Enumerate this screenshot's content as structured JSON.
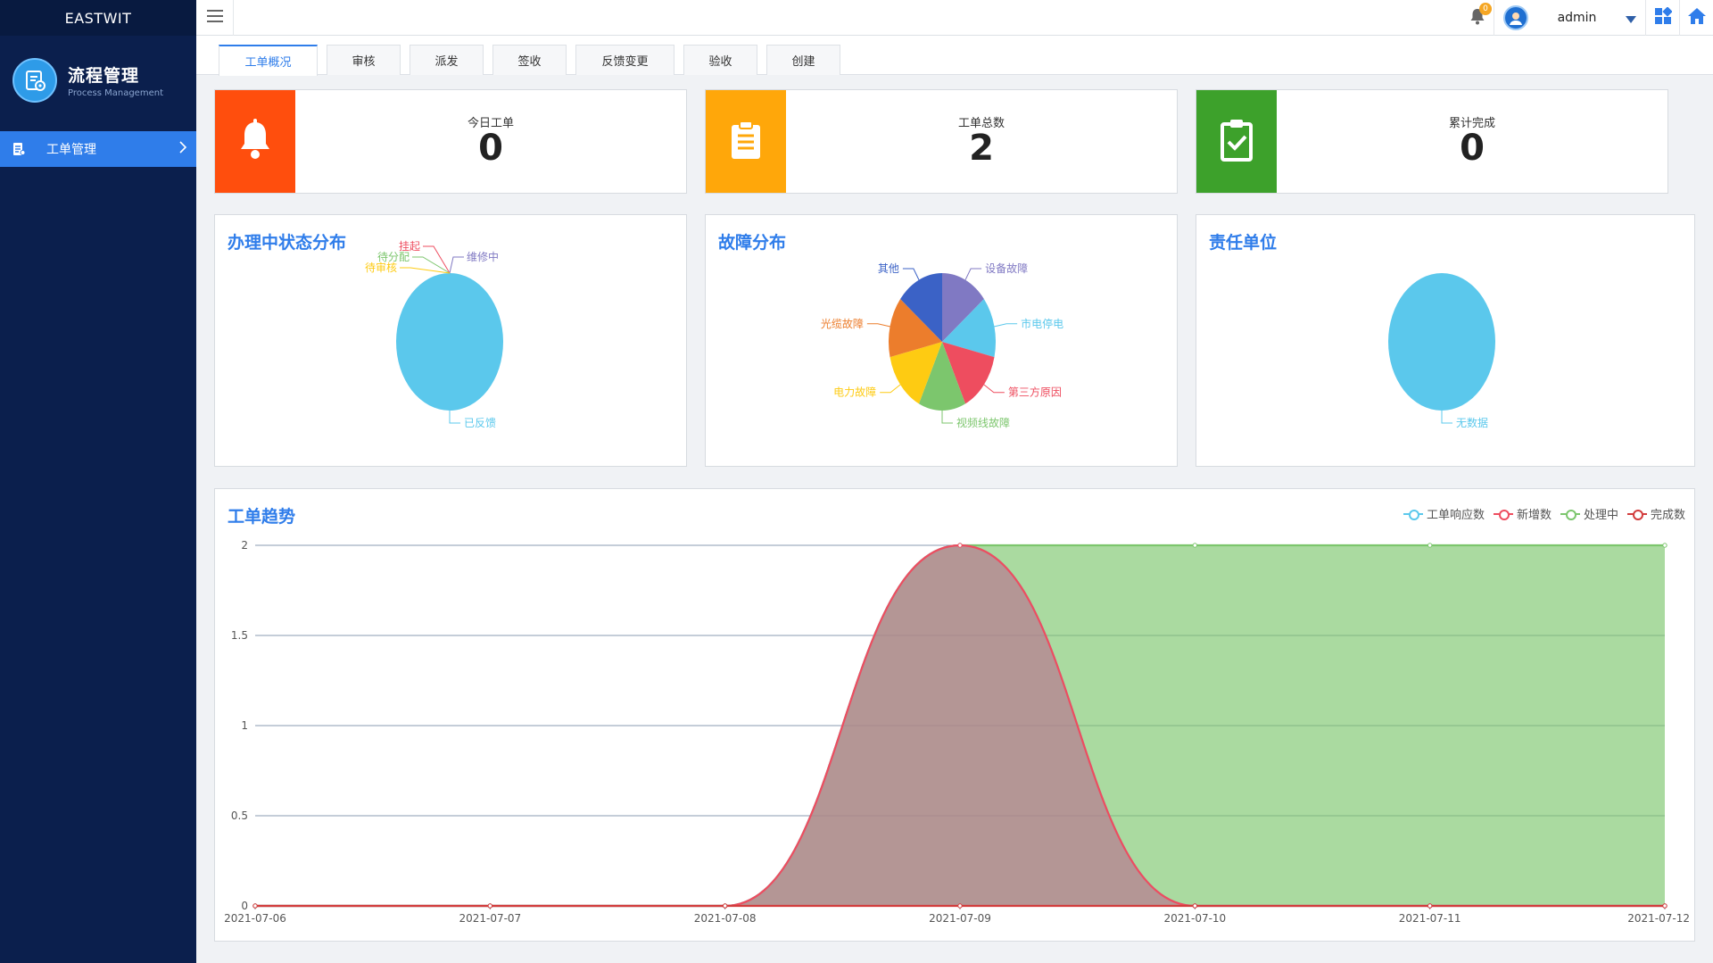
{
  "brand": "EASTWIT",
  "module": {
    "title": "流程管理",
    "subtitle": "Process  Management"
  },
  "sidebar": {
    "items": [
      {
        "label": "工单管理"
      }
    ]
  },
  "topbar": {
    "notification_count": "0",
    "username": "admin"
  },
  "tabs": [
    {
      "label": "工单概况",
      "active": true
    },
    {
      "label": "审核"
    },
    {
      "label": "派发"
    },
    {
      "label": "签收"
    },
    {
      "label": "反馈变更"
    },
    {
      "label": "验收"
    },
    {
      "label": "创建"
    }
  ],
  "stats": [
    {
      "label": "今日工单",
      "value": "0",
      "color": "#ff4e0d",
      "icon": "bell-icon"
    },
    {
      "label": "工单总数",
      "value": "2",
      "color": "#ffa70a",
      "icon": "clipboard-icon"
    },
    {
      "label": "累计完成",
      "value": "0",
      "color": "#3da12b",
      "icon": "clipboard-check-icon"
    }
  ],
  "panels": {
    "status": {
      "title": "办理中状态分布"
    },
    "fault": {
      "title": "故障分布"
    },
    "unit": {
      "title": "责任单位"
    },
    "trend": {
      "title": "工单趋势"
    }
  },
  "chart_data": [
    {
      "type": "pie",
      "title": "办理中状态分布",
      "slices": [
        {
          "name": "已反馈",
          "value": 1,
          "color": "#5bc8ec"
        },
        {
          "name": "维修中",
          "value": 0,
          "color": "#8079c3"
        },
        {
          "name": "挂起",
          "value": 0,
          "color": "#ee4d5f"
        },
        {
          "name": "待分配",
          "value": 0,
          "color": "#7cc66d"
        },
        {
          "name": "待审核",
          "value": 0,
          "color": "#fecb12"
        }
      ]
    },
    {
      "type": "pie",
      "title": "故障分布",
      "slices": [
        {
          "name": "设备故障",
          "value": 1,
          "color": "#8079c3"
        },
        {
          "name": "市电停电",
          "value": 1,
          "color": "#5bc8ec"
        },
        {
          "name": "第三方原因",
          "value": 1,
          "color": "#ee4d5f"
        },
        {
          "name": "视频线故障",
          "value": 1,
          "color": "#7cc66d"
        },
        {
          "name": "电力故障",
          "value": 1,
          "color": "#fecb12"
        },
        {
          "name": "光缆故障",
          "value": 1,
          "color": "#ec7d2c"
        },
        {
          "name": "其他",
          "value": 1,
          "color": "#3b62c6"
        }
      ]
    },
    {
      "type": "pie",
      "title": "责任单位",
      "slices": [
        {
          "name": "无数据",
          "value": 1,
          "color": "#5bc8ec"
        }
      ]
    },
    {
      "type": "area",
      "title": "工单趋势",
      "categories": [
        "2021-07-06",
        "2021-07-07",
        "2021-07-08",
        "2021-07-09",
        "2021-07-10",
        "2021-07-11",
        "2021-07-12"
      ],
      "ylim": [
        0,
        2
      ],
      "yticks": [
        "0",
        "0.5",
        "1",
        "1.5",
        "2"
      ],
      "grid": true,
      "legend_position": "top-right",
      "series": [
        {
          "name": "工单响应数",
          "color": "#5bc8ec",
          "values": [
            0,
            0,
            0,
            2,
            0,
            0,
            0
          ]
        },
        {
          "name": "新增数",
          "color": "#ee4d5f",
          "values": [
            0,
            0,
            0,
            2,
            0,
            0,
            0
          ]
        },
        {
          "name": "处理中",
          "color": "#7cc66d",
          "values": [
            0,
            0,
            0,
            2,
            2,
            2,
            2
          ]
        },
        {
          "name": "完成数",
          "color": "#d23c3c",
          "values": [
            0,
            0,
            0,
            0,
            0,
            0,
            0
          ]
        }
      ]
    }
  ]
}
